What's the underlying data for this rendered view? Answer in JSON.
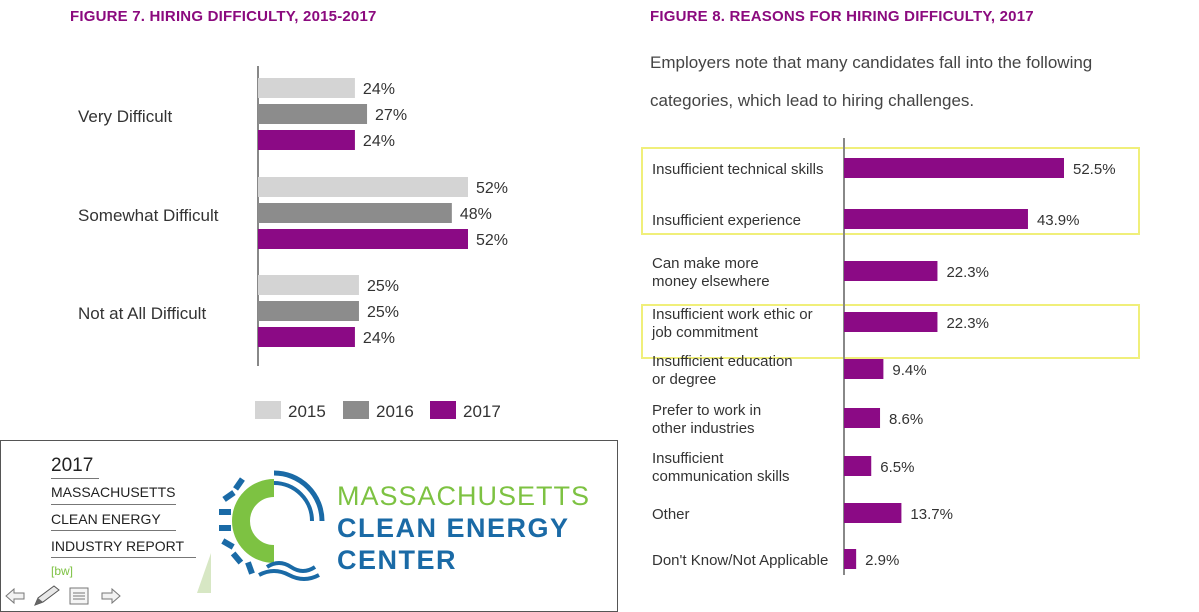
{
  "figure7": {
    "title": "FIGURE 7. HIRING DIFFICULTY, 2015-2017"
  },
  "figure8": {
    "title": "FIGURE 8. REASONS FOR HIRING DIFFICULTY, 2017",
    "intro_line1": "Employers note that many candidates fall into the following",
    "intro_line2": "categories, which lead to hiring challenges."
  },
  "chart_data": [
    {
      "type": "bar",
      "orientation": "horizontal",
      "title": "FIGURE 7. HIRING DIFFICULTY, 2015-2017",
      "categories": [
        "Very Difficult",
        "Somewhat Difficult",
        "Not at All Difficult"
      ],
      "series": [
        {
          "name": "2015",
          "values": [
            24,
            52,
            25
          ],
          "labels": [
            "24%",
            "52%",
            "25%"
          ],
          "color": "#d4d4d4"
        },
        {
          "name": "2016",
          "values": [
            27,
            48,
            25
          ],
          "labels": [
            "27%",
            "48%",
            "25%"
          ],
          "color": "#8c8c8c"
        },
        {
          "name": "2017",
          "values": [
            24,
            52,
            24
          ],
          "labels": [
            "24%",
            "52%",
            "24%"
          ],
          "color": "#8b0a85"
        }
      ],
      "xlim": [
        0,
        60
      ],
      "legend": "bottom"
    },
    {
      "type": "bar",
      "orientation": "horizontal",
      "title": "FIGURE 8. REASONS FOR HIRING DIFFICULTY, 2017",
      "categories": [
        [
          "Insufficient technical skills"
        ],
        [
          "Insufficient experience"
        ],
        [
          "Can make more",
          "money elsewhere"
        ],
        [
          "Insufficient work ethic or",
          "job commitment"
        ],
        [
          "Insufficient education",
          "or degree"
        ],
        [
          "Prefer to work in",
          "other industries"
        ],
        [
          "Insufficient",
          "communication skills"
        ],
        [
          "Other"
        ],
        [
          "Don't Know/Not Applicable"
        ]
      ],
      "values": [
        52.5,
        43.9,
        22.3,
        22.3,
        9.4,
        8.6,
        6.5,
        13.7,
        2.9
      ],
      "labels": [
        "52.5%",
        "43.9%",
        "22.3%",
        "22.3%",
        "9.4%",
        "8.6%",
        "6.5%",
        "13.7%",
        "2.9%"
      ],
      "color": "#8b0a85",
      "xlim": [
        0,
        60
      ],
      "highlighted_groups": [
        [
          0,
          1
        ],
        [
          3
        ]
      ],
      "highlight_color": "#f0ef7a"
    }
  ],
  "logo": {
    "year": "2017",
    "report_lines": [
      "MASSACHUSETTS",
      "CLEAN ENERGY",
      "INDUSTRY REPORT"
    ],
    "bw_tag": "[bw]",
    "mcec_line1": "MASSACHUSETTS",
    "mcec_line2": "CLEAN ENERGY",
    "mcec_line3": "CENTER",
    "letter": "C",
    "green": "#7dc242",
    "blue": "#1a6aa6"
  },
  "nav": {
    "icons": [
      "arrow-left-icon",
      "pen-icon",
      "list-icon",
      "arrow-right-icon"
    ]
  }
}
